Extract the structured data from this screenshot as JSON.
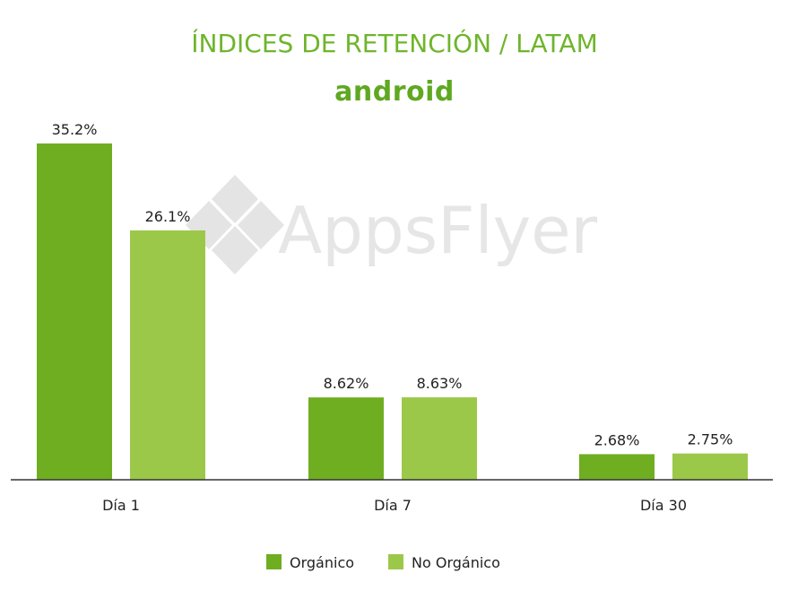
{
  "chart_data": {
    "type": "bar",
    "title": "ÍNDICES DE RETENCIÓN / LATAM",
    "subtitle": "android",
    "watermark": "AppsFlyer",
    "categories": [
      "Día 1",
      "Día 7",
      "Día 30"
    ],
    "series": [
      {
        "name": "Orgánico",
        "color": "#6fae21",
        "values": [
          35.2,
          8.62,
          2.68
        ],
        "labels": [
          "35.2%",
          "8.62%",
          "2.68%"
        ]
      },
      {
        "name": "No Orgánico",
        "color": "#9cc84a",
        "values": [
          26.1,
          8.63,
          2.75
        ],
        "labels": [
          "26.1%",
          "8.63%",
          "2.75%"
        ]
      }
    ],
    "ylim": [
      0,
      35.2
    ],
    "grid": false,
    "legend_position": "bottom-center",
    "xlabel": "",
    "ylabel": ""
  }
}
